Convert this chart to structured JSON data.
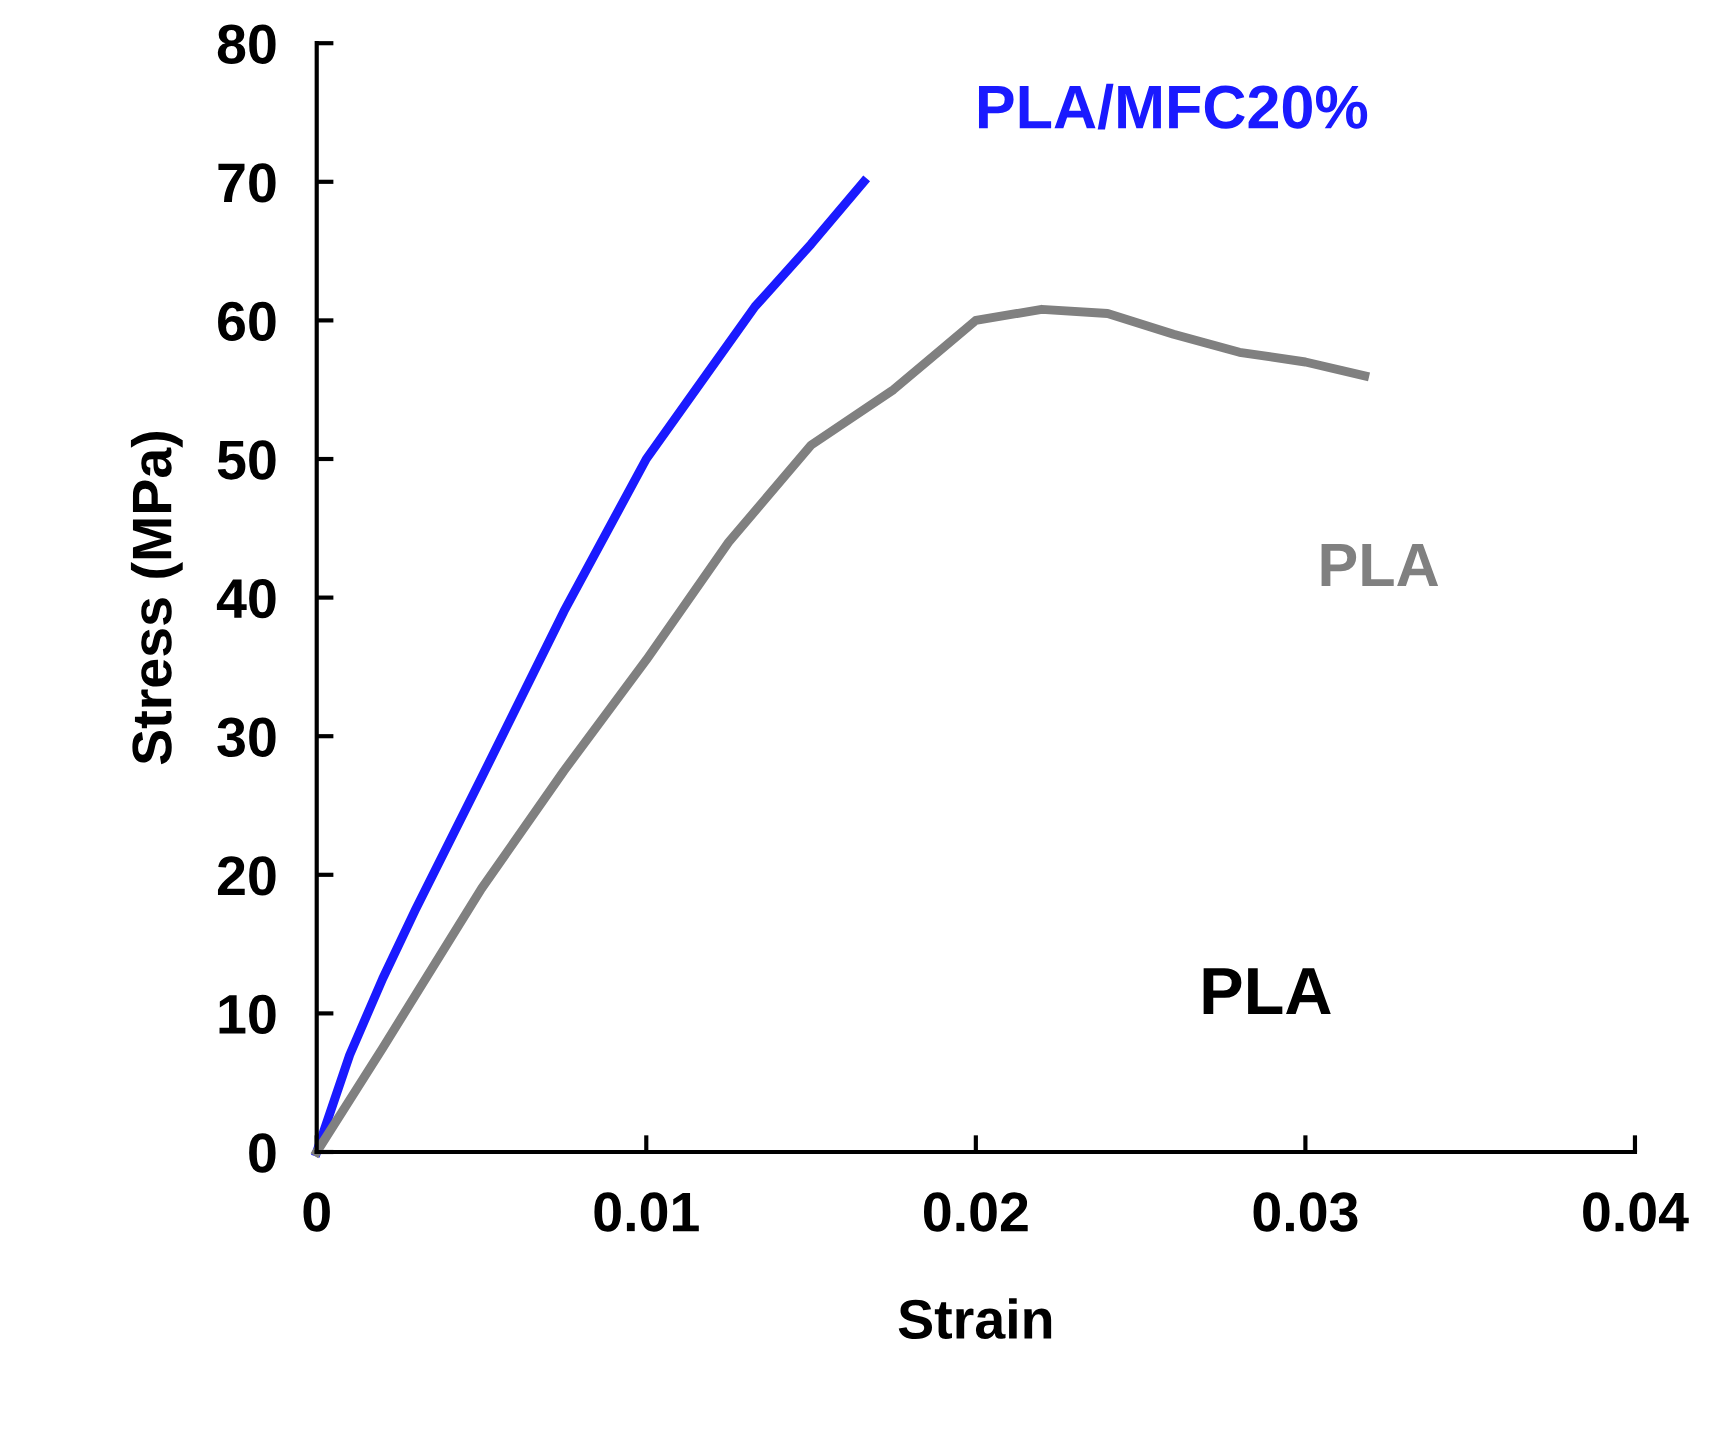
{
  "chart_data": {
    "type": "line",
    "xlabel": "Strain",
    "ylabel": "Stress (MPa)",
    "xlim": [
      0,
      0.04
    ],
    "ylim": [
      0,
      80
    ],
    "xticks": [
      0,
      {
        "value": 0.01,
        "label": "0.01"
      },
      {
        "value": 0.02,
        "label": "0.02"
      },
      {
        "value": 0.03,
        "label": "0.03"
      },
      {
        "value": 0.04,
        "label": "0.04"
      }
    ],
    "yticks": [
      0,
      10,
      20,
      30,
      40,
      50,
      60,
      70,
      80
    ],
    "grid": false,
    "legend": false,
    "marker": "none",
    "line_style": "solid",
    "series": [
      {
        "name": "PLA/MFC20%",
        "color": "#1a1aff",
        "x": [
          0,
          0.001,
          0.002,
          0.003,
          0.005,
          0.0075,
          0.01,
          0.0115,
          0.0133,
          0.015,
          0.0166
        ],
        "values": [
          0,
          7,
          12.5,
          17.5,
          27,
          39,
          50,
          55,
          61,
          65.5,
          70
        ]
      },
      {
        "name": "PLA",
        "color": "#808080",
        "x": [
          0,
          0.002,
          0.005,
          0.0075,
          0.01,
          0.0125,
          0.015,
          0.0175,
          0.019,
          0.02,
          0.022,
          0.024,
          0.026,
          0.028,
          0.03,
          0.0318
        ],
        "values": [
          0,
          7.5,
          19,
          27.5,
          35.5,
          44,
          51,
          55,
          58,
          60,
          60.8,
          60.5,
          59,
          57.7,
          57,
          56
        ]
      }
    ],
    "annotations": [
      "PLA"
    ]
  }
}
